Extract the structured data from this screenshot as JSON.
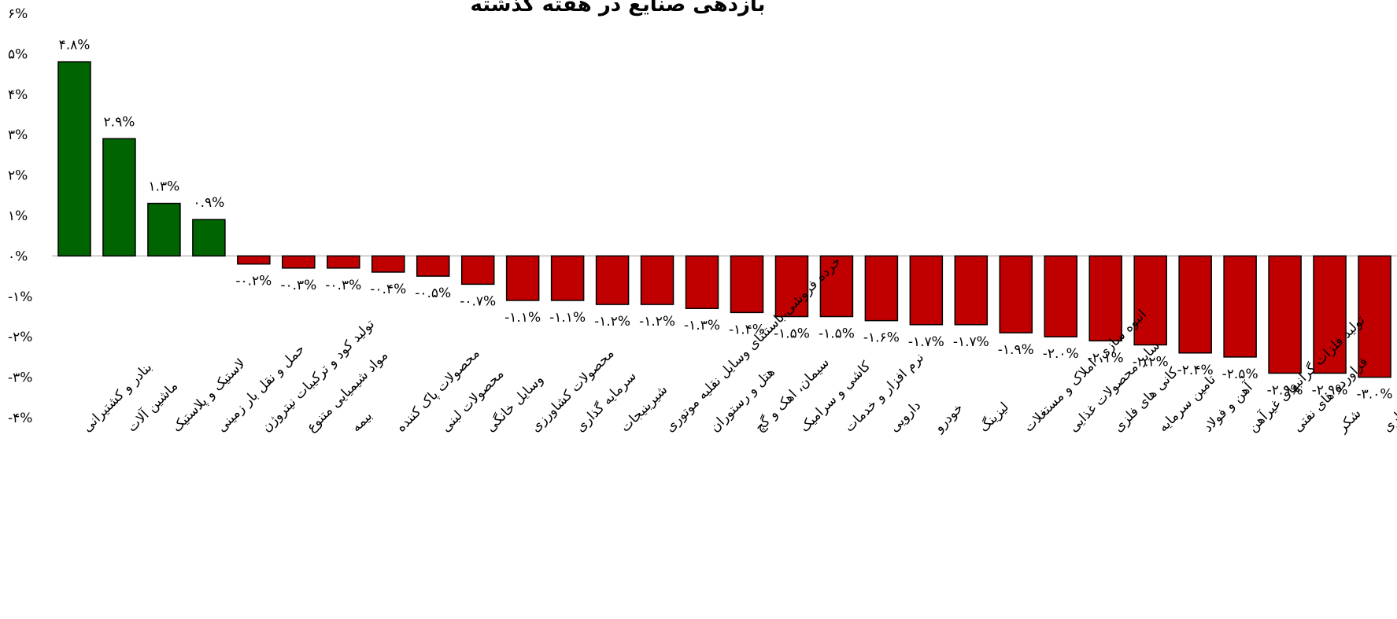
{
  "chart_data": {
    "type": "bar",
    "title": "بازدهی صنایع در هفته گذشته",
    "xlabel": "",
    "ylabel": "",
    "ylim": [
      -4,
      6
    ],
    "yticks": [
      {
        "value": 6,
        "label": "۶%"
      },
      {
        "value": 5,
        "label": "۵%"
      },
      {
        "value": 4,
        "label": "۴%"
      },
      {
        "value": 3,
        "label": "۳%"
      },
      {
        "value": 2,
        "label": "۲%"
      },
      {
        "value": 1,
        "label": "۱%"
      },
      {
        "value": 0,
        "label": "۰%"
      },
      {
        "value": -1,
        "label": "-۱%"
      },
      {
        "value": -2,
        "label": "-۲%"
      },
      {
        "value": -3,
        "label": "-۳%"
      },
      {
        "value": -4,
        "label": "-۴%"
      }
    ],
    "categories": [
      "بنادر و کشتیرانی",
      "ماشین آلات",
      "لاستیک و پلاستیک",
      "حمل و نقل بار زمینی",
      "تولید کود و ترکیبات نیتروژن",
      "مواد شیمیایی متنوع",
      "بیمه",
      "محصولات پاک کننده",
      "محصولات لبنی",
      "وسایل خانگی",
      "محصولات کشاورزی",
      "سرمایه گذاری",
      "شیرینیجات",
      "خرده فروشی،باستثنای وسایل نقلیه موتوری",
      "هتل و رستوران",
      "سیمان، اهک و گچ",
      "کاشی و سرامیک",
      "نرم افزار و خدمات",
      "دارویی",
      "خودرو",
      "لیزینگ",
      "انبوه سازی، املاک و مستغلات",
      "سایر محصولات غذایی",
      "کانی های فلزی",
      "تامین سرمایه",
      "آهن و فولاد",
      "تولید فلزات گرانبهای غیرآهن",
      "فراورده های نفتی",
      "شکر",
      "بانکها و موسسات اعتباری"
    ],
    "values": [
      4.8,
      2.9,
      1.3,
      0.9,
      -0.2,
      -0.3,
      -0.3,
      -0.4,
      -0.5,
      -0.7,
      -1.1,
      -1.1,
      -1.2,
      -1.2,
      -1.3,
      -1.4,
      -1.5,
      -1.5,
      -1.6,
      -1.7,
      -1.7,
      -1.9,
      -2.0,
      -2.1,
      -2.2,
      -2.4,
      -2.5,
      -2.9,
      -2.9,
      -3.0
    ],
    "data_labels": [
      "۴.۸%",
      "۲.۹%",
      "۱.۳%",
      "۰.۹%",
      "-۰.۲%",
      "-۰.۳%",
      "-۰.۳%",
      "-۰.۴%",
      "-۰.۵%",
      "-۰.۷%",
      "-۱.۱%",
      "-۱.۱%",
      "-۱.۲%",
      "-۱.۲%",
      "-۱.۳%",
      "-۱.۴%",
      "-۱.۵%",
      "-۱.۵%",
      "-۱.۶%",
      "-۱.۷%",
      "-۱.۷%",
      "-۱.۹%",
      "-۲.۰%",
      "-۲.۱%",
      "-۲.۲%",
      "-۲.۴%",
      "-۲.۵%",
      "-۲.۹%",
      "-۲.۹%",
      "-۳.۰%"
    ],
    "colors": {
      "positive": "#006400",
      "negative": "#c00000",
      "outline": "#000000",
      "zero_line": "#bfbfbf"
    },
    "grid": false,
    "legend": "none"
  }
}
